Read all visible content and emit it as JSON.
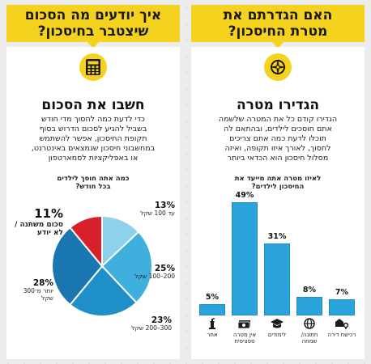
{
  "left_panel": {
    "header_line1": "איך יודעים מה הסכום",
    "header_line2": "שיצטבר בחיסכון?",
    "title": "חשבו את הסכום",
    "paragraph": [
      "כדי לדעת כמה לחסוך מדי חודש",
      "בשביל להגיע לסכום הדרוש בסוף",
      "תקופת החיסכון, אפשר להשתמש",
      "במחשבוני חיסכון שנמצאים באינטרנט,",
      "או באפליקציות לסמארטפון"
    ],
    "chart_question": [
      "כמה אתה חוסך לילדים",
      "בכל חודש?"
    ],
    "slices": [
      {
        "pct": "13%",
        "text": "עד 100 שקל",
        "value": 13,
        "color": "#8ed1ea"
      },
      {
        "pct": "25%",
        "text": "200–100 שקל",
        "value": 25,
        "color": "#3fb0de"
      },
      {
        "pct": "23%",
        "text": "300–200 שקל",
        "value": 23,
        "color": "#1f8fc8"
      },
      {
        "pct": "28%",
        "text": "יותר מ־300 שקל",
        "value": 28,
        "color": "#1a76b0"
      },
      {
        "pct": "11%",
        "text": "סכום משתנה / לא יודע",
        "value": 11,
        "color": "#d6202a"
      }
    ]
  },
  "right_panel": {
    "header_line1": "האם הגדרתם את",
    "header_line2": "מטרת החיסכון?",
    "title": "הגדירו מטרה",
    "paragraph": [
      "הגדירו קודם כל את המטרה שלשמה",
      "אתם חוסכים לילדים, ובהתאם לה",
      "תוכלו לדעת כמה אתם צריכים",
      "לחסוך, לאורך איזו תקופה, ואיזה",
      "מסלול חיסכון הוא הכדאי ביותר"
    ],
    "chart_question": [
      "לאיזו מטרה אתה מייעד את",
      "החיסכון לילדים?"
    ],
    "bars": [
      {
        "label": "אחר",
        "value": 5,
        "pct": "5%",
        "icon": "statue-icon"
      },
      {
        "label": "אין מטרה ספציפית",
        "value": 49,
        "pct": "49%",
        "icon": "money-icon"
      },
      {
        "label": "לימודים",
        "value": 31,
        "pct": "31%",
        "icon": "graduation-icon"
      },
      {
        "label": "חתונה/ שמחה",
        "value": 8,
        "pct": "8%",
        "icon": "globe-icon"
      },
      {
        "label": "רכישת דירה",
        "value": 7,
        "pct": "7%",
        "icon": "house-key-icon"
      }
    ]
  },
  "chart_data": [
    {
      "type": "pie",
      "title": "כמה אתה חוסך לילדים בכל חודש?",
      "categories": [
        "עד 100 שקל",
        "200–100 שקל",
        "300–200 שקל",
        "יותר מ־300 שקל",
        "סכום משתנה / לא יודע"
      ],
      "values": [
        13,
        25,
        23,
        28,
        11
      ]
    },
    {
      "type": "bar",
      "title": "לאיזו מטרה אתה מייעד את החיסכון לילדים?",
      "categories": [
        "אחר",
        "אין מטרה ספציפית",
        "לימודים",
        "חתונה/ שמחה",
        "רכישת דירה"
      ],
      "values": [
        5,
        49,
        31,
        8,
        7
      ]
    }
  ],
  "colors": {
    "accent": "#f4d21d",
    "bar": "#29a3d9",
    "red": "#d6202a"
  }
}
